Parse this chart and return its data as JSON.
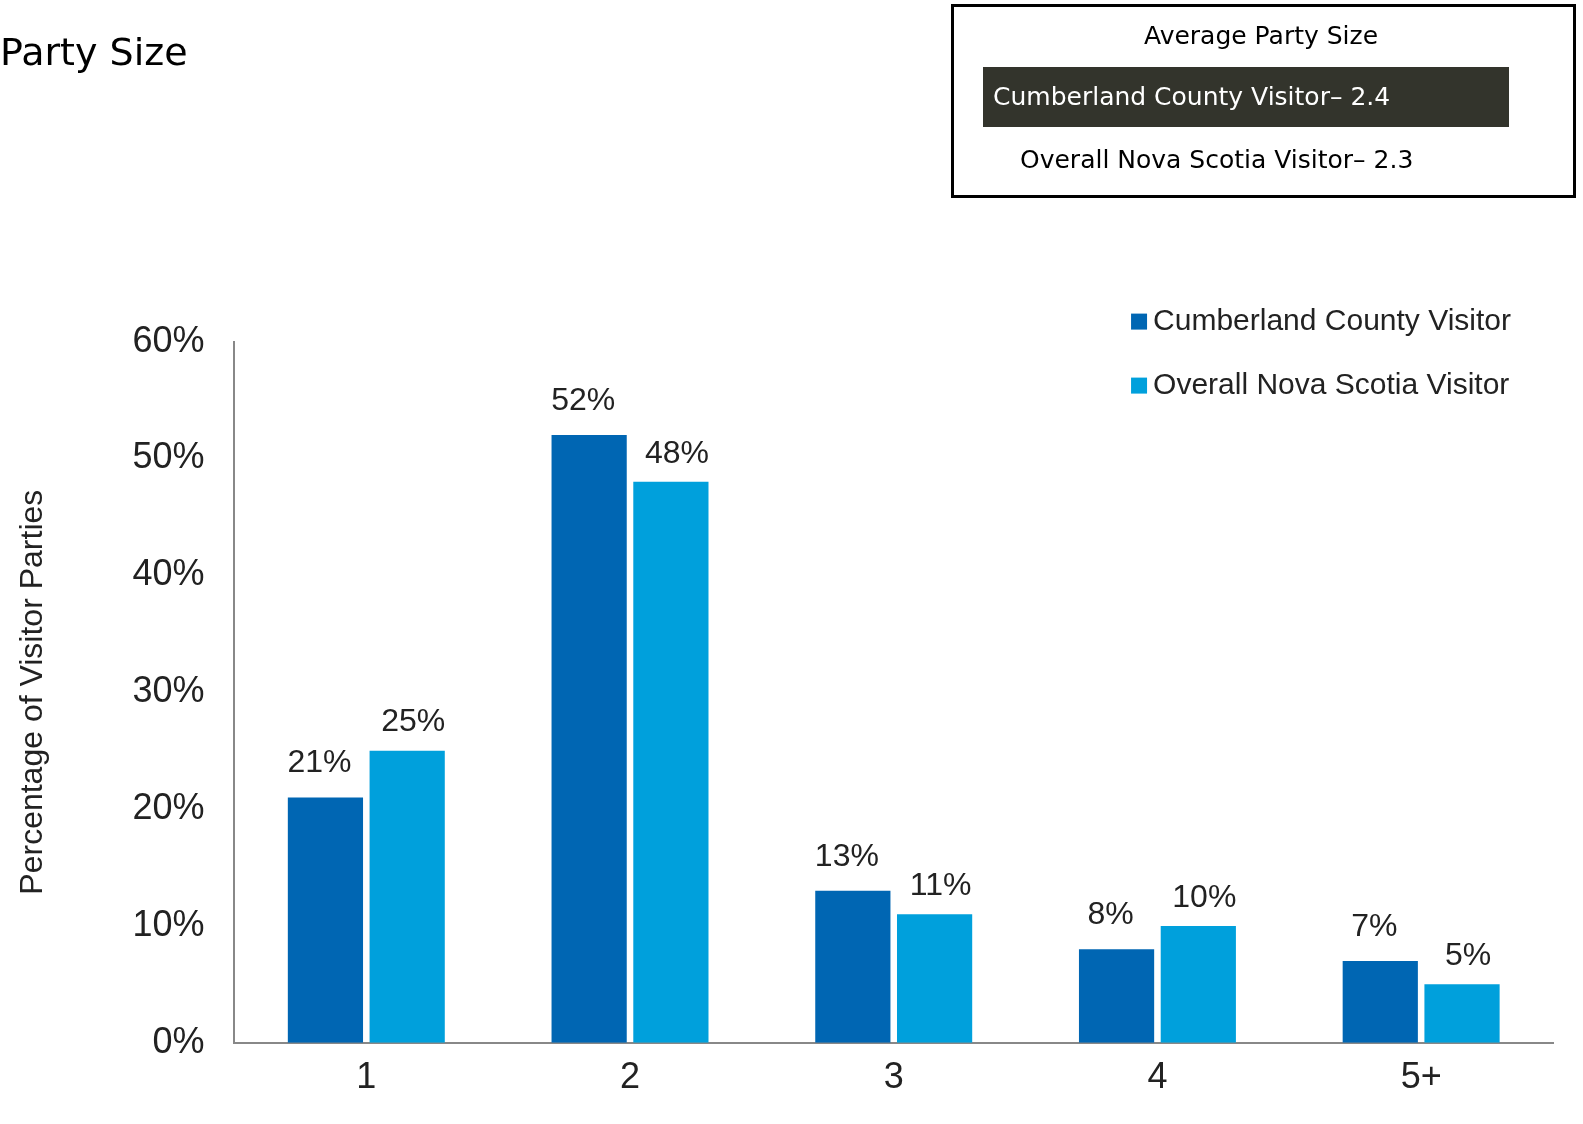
{
  "chart_data": {
    "type": "bar",
    "title": "Party Size",
    "annotations": [
      "Average Party Size",
      "Cumberland County Visitor– 2.4",
      "Overall Nova Scotia Visitor– 2.3"
    ],
    "ylabel": "Percentage of Visitor Parties",
    "categories": [
      "1",
      "2",
      "3",
      "4",
      "5+"
    ],
    "series": [
      {
        "name": "Cumberland County Visitor",
        "color": "#0066b3",
        "values": [
          21,
          52,
          13,
          8,
          7
        ],
        "value_labels": [
          "21%",
          "52%",
          "13%",
          "8%",
          "7%"
        ]
      },
      {
        "name": "Overall Nova Scotia Visitor",
        "color": "#00a0dc",
        "values": [
          25,
          48,
          11,
          10,
          5
        ],
        "value_labels": [
          "25%",
          "48%",
          "11%",
          "10%",
          "5%"
        ]
      }
    ],
    "ylim": [
      0,
      60
    ],
    "yticks": [
      {
        "value": 0,
        "label": "0%"
      },
      {
        "value": 10,
        "label": "10%"
      },
      {
        "value": 20,
        "label": "20%"
      },
      {
        "value": 30,
        "label": "30%"
      },
      {
        "value": 40,
        "label": "40%"
      },
      {
        "value": 50,
        "label": "50%"
      },
      {
        "value": 60,
        "label": "60%"
      }
    ],
    "legend": "top right",
    "grid": false
  }
}
